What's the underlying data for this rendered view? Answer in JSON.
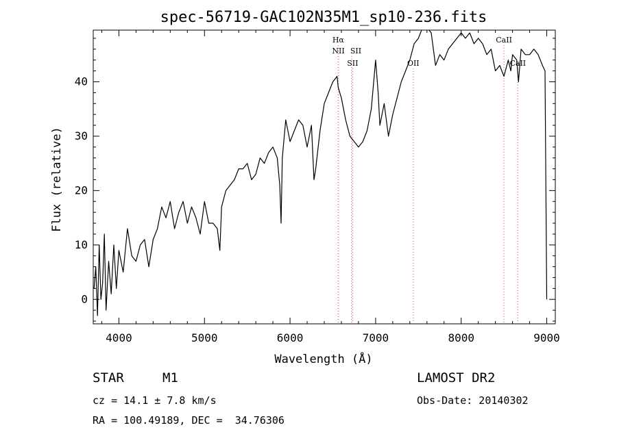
{
  "chart_data": {
    "type": "line",
    "title": "spec-56719-GAC102N35M1_sp10-236.fits",
    "xlabel": "Wavelength (Å)",
    "ylabel": "Flux (relative)",
    "xlim": [
      3700,
      9100
    ],
    "ylim": [
      -4.5,
      49.5
    ],
    "xticks": [
      "4000",
      "5000",
      "6000",
      "7000",
      "8000",
      "9000"
    ],
    "yticks": [
      "0",
      "10",
      "20",
      "30",
      "40"
    ],
    "grid": false,
    "series": [
      {
        "x": [
          3710,
          3730,
          3750,
          3770,
          3790,
          3810,
          3830,
          3850,
          3880,
          3910,
          3940,
          3970,
          4000,
          4050,
          4100,
          4150,
          4200,
          4250,
          4300,
          4350,
          4400,
          4450,
          4500,
          4550,
          4600,
          4650,
          4700,
          4750,
          4800,
          4850,
          4900,
          4950,
          5000,
          5050,
          5100,
          5150,
          5180,
          5200,
          5250,
          5300,
          5350,
          5400,
          5450,
          5500,
          5550,
          5600,
          5650,
          5700,
          5750,
          5800,
          5850,
          5880,
          5895,
          5910,
          5950,
          6000,
          6050,
          6100,
          6150,
          6200,
          6250,
          6280,
          6300,
          6350,
          6400,
          6450,
          6500,
          6550,
          6563,
          6600,
          6650,
          6700,
          6750,
          6800,
          6850,
          6900,
          6950,
          7000,
          7030,
          7050,
          7100,
          7150,
          7200,
          7250,
          7300,
          7350,
          7400,
          7450,
          7500,
          7550,
          7600,
          7650,
          7700,
          7750,
          7800,
          7850,
          7900,
          7950,
          8000,
          8050,
          8100,
          8150,
          8200,
          8250,
          8300,
          8350,
          8400,
          8450,
          8500,
          8550,
          8580,
          8600,
          8650,
          8670,
          8700,
          8750,
          8800,
          8850,
          8900,
          8950,
          8980,
          9000
        ],
        "y": [
          2,
          6,
          -3,
          10,
          0,
          3,
          12,
          -2,
          7,
          1,
          10,
          2,
          9,
          5,
          13,
          8,
          7,
          10,
          11,
          6,
          11,
          13,
          17,
          15,
          18,
          13,
          16,
          18,
          14,
          17,
          15,
          12,
          18,
          14,
          14,
          13,
          9,
          17,
          20,
          21,
          22,
          24,
          24,
          25,
          22,
          23,
          26,
          25,
          27,
          28,
          26,
          21,
          14,
          26,
          33,
          29,
          31,
          33,
          32,
          28,
          32,
          22,
          24,
          31,
          36,
          38,
          40,
          41,
          39,
          37,
          33,
          30,
          29,
          28,
          29,
          31,
          35,
          44,
          38,
          32,
          36,
          30,
          34,
          37,
          40,
          42,
          44,
          47,
          48,
          50,
          50,
          49,
          43,
          45,
          44,
          46,
          47,
          48,
          49,
          48,
          49,
          47,
          48,
          47,
          45,
          46,
          42,
          43,
          41,
          44,
          42,
          45,
          44,
          40,
          46,
          45,
          45,
          46,
          45,
          43,
          42,
          0
        ],
        "color": "#000000"
      }
    ],
    "annotations": [
      {
        "x": 6563,
        "label": "Hα",
        "row": 1
      },
      {
        "x": 6565,
        "label": "NII",
        "row": 2
      },
      {
        "x": 6720,
        "label": "SII",
        "row": 2
      },
      {
        "x": 6731,
        "label": "SII",
        "row": 3
      },
      {
        "x": 7440,
        "label": "OII",
        "row": 3
      },
      {
        "x": 8500,
        "label": "CaII",
        "row": 1
      },
      {
        "x": 8662,
        "label": "CaII",
        "row": 3
      }
    ],
    "annotation_line_color": "#e06060"
  },
  "info": {
    "object_class": "STAR",
    "subclass": "M1",
    "survey": "LAMOST DR2",
    "cz": "cz = 14.1 ± 7.8 km/s",
    "obs_date": "Obs-Date: 20140302",
    "coords": "RA = 100.49189, DEC =  34.76306"
  }
}
